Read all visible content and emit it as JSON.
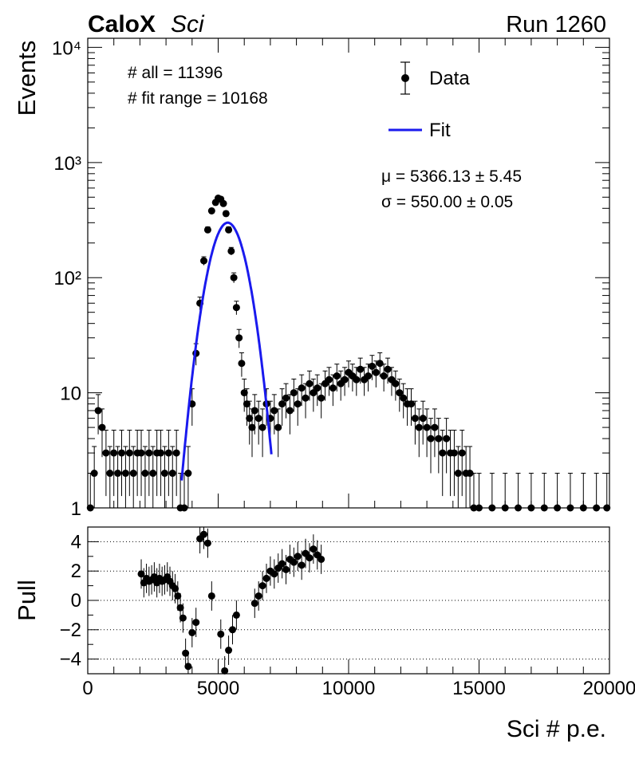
{
  "header": {
    "experiment": "CaloX",
    "detector": "Sci",
    "run": "Run 1260"
  },
  "stats": {
    "all": "# all = 11396",
    "fit_range": "# fit range = 10168"
  },
  "fit_params": {
    "mu": "μ = 5366.13 ± 5.45",
    "sigma": "σ = 550.00 ± 0.05"
  },
  "legend": {
    "data_label": "Data",
    "fit_label": "Fit"
  },
  "colors": {
    "data": "#000000",
    "fit": "#1a1aee"
  },
  "chart_data": [
    {
      "type": "scatter",
      "panel": "main",
      "title": "",
      "xlabel": "",
      "ylabel": "Events",
      "xlim": [
        0,
        20000
      ],
      "ylim": [
        1,
        12000
      ],
      "yscale": "log",
      "ytick_labels": [
        "1",
        "10",
        "10²",
        "10³",
        "10⁴"
      ],
      "legend_position": "top-right",
      "series": [
        {
          "name": "Data",
          "style": "markers-with-error-bars",
          "x": [
            100,
            250,
            400,
            550,
            700,
            850,
            1000,
            1150,
            1300,
            1450,
            1600,
            1750,
            1900,
            2050,
            2200,
            2350,
            2500,
            2650,
            2800,
            2950,
            3100,
            3250,
            3400,
            3550,
            3700,
            3850,
            4000,
            4150,
            4300,
            4450,
            4600,
            4750,
            4900,
            5000,
            5100,
            5200,
            5300,
            5400,
            5500,
            5600,
            5700,
            5800,
            5900,
            6000,
            6100,
            6200,
            6300,
            6400,
            6550,
            6700,
            6850,
            7000,
            7150,
            7300,
            7450,
            7600,
            7750,
            7900,
            8050,
            8200,
            8350,
            8500,
            8650,
            8800,
            8950,
            9100,
            9250,
            9400,
            9550,
            9700,
            9850,
            10000,
            10150,
            10300,
            10450,
            10600,
            10750,
            10900,
            11050,
            11200,
            11350,
            11500,
            11650,
            11800,
            11950,
            12100,
            12250,
            12400,
            12550,
            12700,
            12850,
            13000,
            13150,
            13300,
            13450,
            13600,
            13750,
            13900,
            14050,
            14200,
            14350,
            14500,
            14650,
            14800,
            15000,
            15500,
            16000,
            16500,
            17000,
            17500,
            18000,
            18500,
            19000,
            19500,
            19900
          ],
          "y": [
            1,
            2,
            7,
            5,
            3,
            2,
            3,
            2,
            3,
            2,
            3,
            2,
            3,
            3,
            2,
            3,
            2,
            3,
            3,
            2,
            3,
            2,
            3,
            1,
            1,
            2,
            8,
            22,
            60,
            140,
            260,
            380,
            450,
            490,
            480,
            440,
            360,
            260,
            170,
            100,
            55,
            30,
            18,
            10,
            8,
            6,
            5,
            7,
            6,
            5,
            8,
            6,
            7,
            5,
            8,
            9,
            7,
            10,
            8,
            11,
            9,
            12,
            10,
            11,
            9,
            12,
            13,
            11,
            14,
            12,
            13,
            15,
            14,
            13,
            16,
            13,
            14,
            17,
            15,
            18,
            14,
            16,
            13,
            12,
            10,
            9,
            8,
            8,
            6,
            5,
            6,
            5,
            4,
            5,
            4,
            3,
            4,
            3,
            3,
            2,
            3,
            2,
            2,
            1,
            1,
            1,
            1,
            1,
            1,
            1,
            1,
            1,
            1,
            1,
            1
          ]
        },
        {
          "name": "Fit",
          "style": "line",
          "model": "gaussian",
          "mu": 5366.13,
          "sigma": 550.0,
          "amplitude": 300,
          "x_range": [
            3600,
            7050
          ]
        }
      ]
    },
    {
      "type": "scatter",
      "panel": "pull",
      "title": "",
      "xlabel": "Sci # p.e.",
      "ylabel": "Pull",
      "xlim": [
        0,
        20000
      ],
      "ylim": [
        -5,
        5
      ],
      "xticks": [
        0,
        5000,
        10000,
        15000,
        20000
      ],
      "yticks": [
        -4,
        -2,
        0,
        2,
        4
      ],
      "grid": "horizontal-dotted",
      "series": [
        {
          "name": "",
          "x": [
            2050,
            2150,
            2250,
            2350,
            2450,
            2550,
            2650,
            2750,
            2850,
            2950,
            3050,
            3150,
            3250,
            3350,
            3450,
            3550,
            3650,
            3750,
            3850,
            4000,
            4150,
            4300,
            4450,
            4600,
            4750,
            5100,
            5250,
            5400,
            5550,
            5700,
            6400,
            6550,
            6700,
            6850,
            7000,
            7150,
            7300,
            7450,
            7600,
            7750,
            7900,
            8050,
            8200,
            8350,
            8500,
            8650,
            8800,
            8950
          ],
          "y": [
            1.8,
            1.2,
            1.5,
            1.3,
            1.4,
            1.6,
            1.2,
            1.5,
            1.3,
            1.4,
            1.6,
            1.3,
            1.0,
            0.8,
            0.3,
            -0.5,
            -1.2,
            -3.6,
            -4.5,
            -2.2,
            -1.5,
            4.2,
            4.5,
            3.9,
            0.3,
            -2.3,
            -4.8,
            -3.4,
            -2.0,
            -1.0,
            -0.2,
            0.3,
            1.0,
            1.5,
            2.0,
            1.8,
            2.2,
            2.5,
            2.1,
            2.8,
            2.6,
            3.0,
            2.4,
            3.2,
            2.9,
            3.5,
            3.1,
            2.8
          ]
        }
      ]
    }
  ]
}
